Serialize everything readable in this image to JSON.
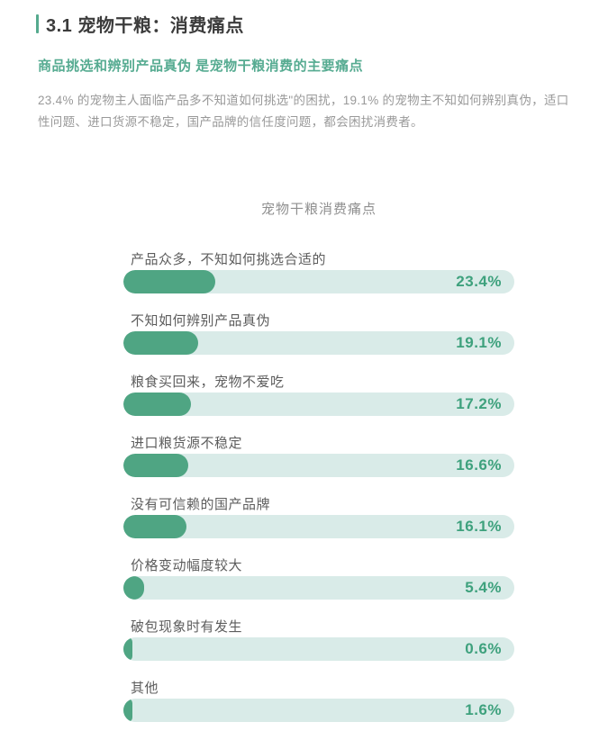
{
  "page": {
    "section_heading": "3.1 宠物干粮：消费痛点",
    "subtitle": "商品挑选和辨别产品真伪 是宠物干粮消费的主要痛点",
    "body_text": "23.4% 的宠物主人面临产品多不知道如何挑选\"的困扰，19.1% 的宠物主不知如何辨别真伪，适口性问题、进口货源不稳定，国产品牌的信任度问题，都会困扰消费者。",
    "accent_color": "#55aa8e"
  },
  "chart_data": {
    "type": "bar",
    "orientation": "horizontal",
    "title": "宠物干粮消费痛点",
    "categories": [
      "产品众多，不知如何挑选合适的",
      "不知如何辨别产品真伪",
      "粮食买回来，宠物不爱吃",
      "进口粮货源不稳定",
      "没有可信赖的国产品牌",
      "价格变动幅度较大",
      "破包现象时有发生",
      "其他"
    ],
    "values": [
      23.4,
      19.1,
      17.2,
      16.6,
      16.1,
      5.4,
      0.6,
      1.6
    ],
    "value_labels": [
      "23.4%",
      "19.1%",
      "17.2%",
      "16.6%",
      "16.1%",
      "5.4%",
      "0.6%",
      "1.6%"
    ],
    "xlim": [
      0,
      100
    ],
    "grid": false,
    "legend": "none",
    "colors": {
      "bar_fill": "#4fa583",
      "bar_track": "#d9ebe8",
      "value_text": "#3ea17d",
      "label_text": "#5d5d5d",
      "title_text": "#8f8f8f",
      "subtitle_text": "#56ab91",
      "heading_text": "#3c3c3c",
      "body_text": "#999999"
    }
  }
}
